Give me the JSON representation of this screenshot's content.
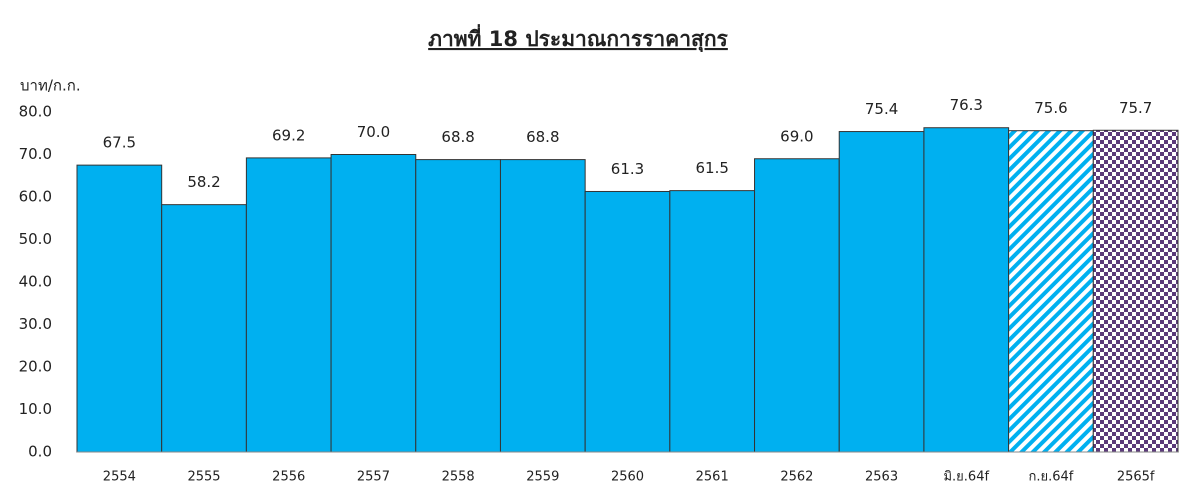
{
  "chart_data": {
    "type": "bar",
    "title": "ภาพที่ 18 ประมาณการราคาสุกร",
    "y_label": "บาท/ก.ก.",
    "categories": [
      "2554",
      "2555",
      "2556",
      "2557",
      "2558",
      "2559",
      "2560",
      "2561",
      "2562",
      "2563",
      "มิ.ย.64f",
      "ก.ย.64f",
      "2565f"
    ],
    "values": [
      67.5,
      58.2,
      69.2,
      70,
      68.8,
      68.8,
      61.3,
      61.5,
      69,
      75.4,
      76.3,
      75.6,
      75.7
    ],
    "value_labels": [
      "67.5",
      "58.2",
      "69.2",
      "70.0",
      "68.8",
      "68.8",
      "61.3",
      "61.5",
      "69.0",
      "75.4",
      "76.3",
      "75.6",
      "75.7"
    ],
    "color": "#00b0f0",
    "patterns": [
      "solid",
      "solid",
      "solid",
      "solid",
      "solid",
      "solid",
      "solid",
      "solid",
      "solid",
      "solid",
      "solid",
      "hatch",
      "checker"
    ],
    "ylim": [
      0,
      80
    ],
    "yticks": [
      {
        "value": 0,
        "label": "0.0"
      },
      {
        "value": 10,
        "label": "10.0"
      },
      {
        "value": 20,
        "label": "20.0"
      },
      {
        "value": 30,
        "label": "30.0"
      },
      {
        "value": 40,
        "label": "40.0"
      },
      {
        "value": 50,
        "label": "50.0"
      },
      {
        "value": 60,
        "label": "60.0"
      },
      {
        "value": 70,
        "label": "70.0"
      },
      {
        "value": 80,
        "label": "80.0"
      }
    ],
    "grid": false
  }
}
